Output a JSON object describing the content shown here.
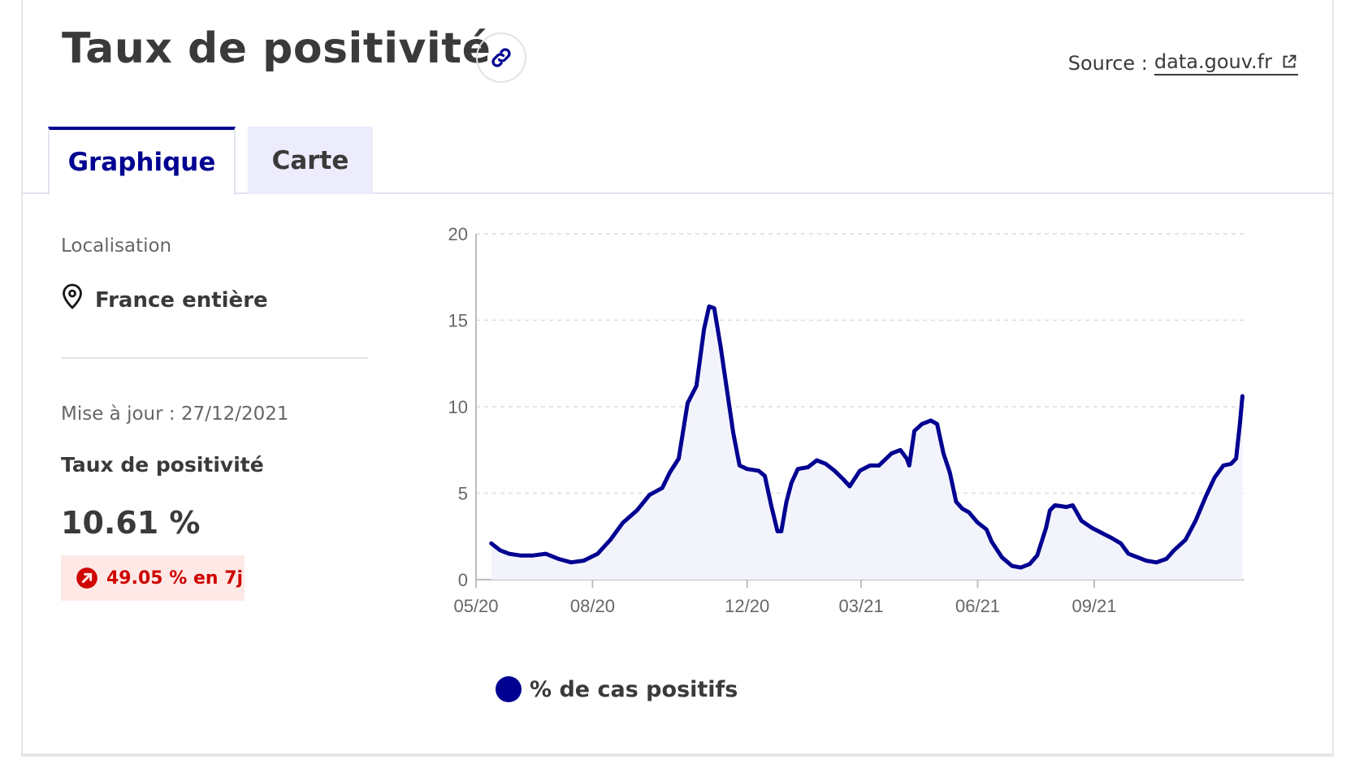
{
  "page": {
    "title": "Taux de positivité",
    "source_label": "Source :",
    "source_link": "data.gouv.fr"
  },
  "tabs": [
    {
      "label": "Graphique",
      "active": true
    },
    {
      "label": "Carte",
      "active": false
    }
  ],
  "sidebar": {
    "location_label": "Localisation",
    "location_value": "France entière",
    "updated": "Mise à jour : 27/12/2021",
    "metric_label": "Taux de positivité",
    "metric_value": "10.61 %",
    "trend": "49.05 % en 7j"
  },
  "colors": {
    "accent": "#000091",
    "area_fill": "#f3f3fc",
    "trend_text": "#ce0500",
    "trend_bg": "#fee9e7"
  },
  "icons": {
    "link": "link-icon",
    "external": "external-link-icon",
    "location": "map-pin-icon",
    "trend": "arrow-up-right-icon"
  },
  "chart_data": {
    "type": "area",
    "ylim": [
      0,
      20
    ],
    "yticks": [
      "0",
      "5",
      "10",
      "15",
      "20"
    ],
    "xticks": [
      "05/20",
      "08/20",
      "12/20",
      "03/21",
      "06/21",
      "09/21"
    ],
    "grid": true,
    "legend_position": "bottom",
    "series": [
      {
        "name": "% de cas positifs",
        "points": [
          [
            "2020-05-13",
            2.1
          ],
          [
            "2020-05-20",
            1.7
          ],
          [
            "2020-05-27",
            1.5
          ],
          [
            "2020-06-05",
            1.4
          ],
          [
            "2020-06-15",
            1.4
          ],
          [
            "2020-06-25",
            1.5
          ],
          [
            "2020-07-05",
            1.2
          ],
          [
            "2020-07-15",
            1.0
          ],
          [
            "2020-07-25",
            1.1
          ],
          [
            "2020-08-05",
            1.5
          ],
          [
            "2020-08-15",
            2.3
          ],
          [
            "2020-08-25",
            3.3
          ],
          [
            "2020-09-05",
            4.0
          ],
          [
            "2020-09-15",
            4.9
          ],
          [
            "2020-09-25",
            5.3
          ],
          [
            "2020-10-01",
            6.2
          ],
          [
            "2020-10-08",
            7.0
          ],
          [
            "2020-10-15",
            10.2
          ],
          [
            "2020-10-22",
            11.2
          ],
          [
            "2020-10-28",
            14.5
          ],
          [
            "2020-11-01",
            15.8
          ],
          [
            "2020-11-05",
            15.7
          ],
          [
            "2020-11-10",
            13.5
          ],
          [
            "2020-11-15",
            11.0
          ],
          [
            "2020-11-20",
            8.5
          ],
          [
            "2020-11-25",
            6.6
          ],
          [
            "2020-12-01",
            6.4
          ],
          [
            "2020-12-10",
            6.3
          ],
          [
            "2020-12-15",
            6.0
          ],
          [
            "2020-12-20",
            4.3
          ],
          [
            "2020-12-25",
            2.8
          ],
          [
            "2020-12-28",
            2.8
          ],
          [
            "2021-01-01",
            4.5
          ],
          [
            "2021-01-05",
            5.6
          ],
          [
            "2021-01-10",
            6.4
          ],
          [
            "2021-01-18",
            6.5
          ],
          [
            "2021-01-25",
            6.9
          ],
          [
            "2021-02-01",
            6.7
          ],
          [
            "2021-02-08",
            6.3
          ],
          [
            "2021-02-15",
            5.8
          ],
          [
            "2021-02-20",
            5.4
          ],
          [
            "2021-02-28",
            6.3
          ],
          [
            "2021-03-08",
            6.6
          ],
          [
            "2021-03-15",
            6.6
          ],
          [
            "2021-03-25",
            7.3
          ],
          [
            "2021-04-01",
            7.5
          ],
          [
            "2021-04-06",
            7.0
          ],
          [
            "2021-04-08",
            6.6
          ],
          [
            "2021-04-12",
            8.6
          ],
          [
            "2021-04-18",
            9.0
          ],
          [
            "2021-04-25",
            9.2
          ],
          [
            "2021-04-30",
            9.0
          ],
          [
            "2021-05-05",
            7.3
          ],
          [
            "2021-05-10",
            6.2
          ],
          [
            "2021-05-15",
            4.5
          ],
          [
            "2021-05-20",
            4.1
          ],
          [
            "2021-05-25",
            3.9
          ],
          [
            "2021-06-01",
            3.3
          ],
          [
            "2021-06-08",
            2.9
          ],
          [
            "2021-06-12",
            2.2
          ],
          [
            "2021-06-20",
            1.3
          ],
          [
            "2021-06-28",
            0.8
          ],
          [
            "2021-07-05",
            0.7
          ],
          [
            "2021-07-12",
            0.9
          ],
          [
            "2021-07-18",
            1.4
          ],
          [
            "2021-07-25",
            3.0
          ],
          [
            "2021-07-28",
            4.0
          ],
          [
            "2021-08-01",
            4.3
          ],
          [
            "2021-08-10",
            4.2
          ],
          [
            "2021-08-15",
            4.3
          ],
          [
            "2021-08-22",
            3.4
          ],
          [
            "2021-08-30",
            3.0
          ],
          [
            "2021-09-07",
            2.7
          ],
          [
            "2021-09-15",
            2.4
          ],
          [
            "2021-09-22",
            2.1
          ],
          [
            "2021-09-28",
            1.5
          ],
          [
            "2021-10-05",
            1.3
          ],
          [
            "2021-10-12",
            1.1
          ],
          [
            "2021-10-20",
            1.0
          ],
          [
            "2021-10-28",
            1.2
          ],
          [
            "2021-11-03",
            1.7
          ],
          [
            "2021-11-12",
            2.3
          ],
          [
            "2021-11-20",
            3.4
          ],
          [
            "2021-11-28",
            4.8
          ],
          [
            "2021-12-05",
            5.9
          ],
          [
            "2021-12-12",
            6.6
          ],
          [
            "2021-12-18",
            6.7
          ],
          [
            "2021-12-22",
            7.0
          ],
          [
            "2021-12-25",
            9.0
          ],
          [
            "2021-12-27",
            10.61
          ]
        ]
      }
    ]
  }
}
